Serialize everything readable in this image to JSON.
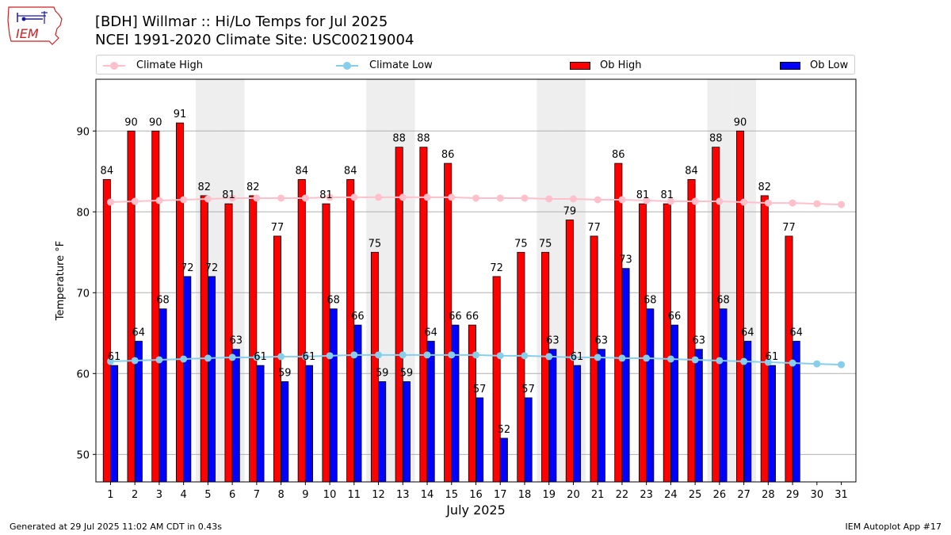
{
  "header": {
    "logo_text": "IEM",
    "title": "[BDH] Willmar :: Hi/Lo Temps for Jul 2025",
    "subtitle": "NCEI 1991-2020 Climate Site: USC00219004"
  },
  "legend": {
    "climate_high": "Climate High",
    "climate_low": "Climate Low",
    "ob_high": "Ob High",
    "ob_low": "Ob Low"
  },
  "colors": {
    "ob_high": "#ff0000",
    "ob_low": "#0000ff",
    "climate_high": "#ffc0cb",
    "climate_low": "#87ceeb",
    "weekend_shade": "#eeeeee"
  },
  "footer": {
    "left": "Generated at 29 Jul 2025 11:02 AM CDT in 0.43s",
    "right": "IEM Autoplot App #17"
  },
  "chart_data": {
    "type": "bar",
    "xlabel": "July 2025",
    "ylabel": "Temperature °F",
    "ylim": [
      46.6,
      96.4
    ],
    "yticks": [
      50,
      60,
      70,
      80,
      90
    ],
    "grid": "horizontal",
    "legend_position": "top",
    "categories": [
      "1",
      "2",
      "3",
      "4",
      "5",
      "6",
      "7",
      "8",
      "9",
      "10",
      "11",
      "12",
      "13",
      "14",
      "15",
      "16",
      "17",
      "18",
      "19",
      "20",
      "21",
      "22",
      "23",
      "24",
      "25",
      "26",
      "27",
      "28",
      "29",
      "30",
      "31"
    ],
    "shaded_days": [
      5,
      6,
      12,
      13,
      19,
      20,
      26,
      27
    ],
    "series": [
      {
        "name": "Ob High",
        "kind": "bar",
        "values": [
          84,
          90,
          90,
          91,
          82,
          81,
          82,
          77,
          84,
          81,
          84,
          75,
          88,
          88,
          86,
          66,
          72,
          75,
          75,
          79,
          77,
          86,
          81,
          81,
          84,
          88,
          90,
          82,
          77,
          null,
          null
        ],
        "labels": [
          84,
          90,
          90,
          91,
          82,
          81,
          82,
          77,
          84,
          81,
          84,
          75,
          88,
          88,
          86,
          66,
          72,
          75,
          75,
          79,
          77,
          86,
          81,
          81,
          84,
          88,
          90,
          82,
          77,
          null,
          null
        ]
      },
      {
        "name": "Ob Low",
        "kind": "bar",
        "values": [
          61,
          64,
          68,
          72,
          72,
          63,
          61,
          59,
          61,
          68,
          66,
          59,
          59,
          64,
          66,
          57,
          52,
          57,
          63,
          61,
          63,
          73,
          68,
          66,
          63,
          68,
          64,
          61,
          64,
          null,
          null
        ],
        "labels": [
          61,
          64,
          68,
          72,
          72,
          63,
          61,
          59,
          61,
          68,
          66,
          59,
          59,
          64,
          66,
          57,
          52,
          57,
          63,
          61,
          63,
          73,
          68,
          66,
          63,
          68,
          64,
          61,
          64,
          null,
          null
        ]
      },
      {
        "name": "Climate High",
        "kind": "line",
        "values": [
          81.2,
          81.3,
          81.4,
          81.5,
          81.6,
          81.7,
          81.7,
          81.7,
          81.7,
          81.8,
          81.8,
          81.8,
          81.8,
          81.8,
          81.8,
          81.7,
          81.7,
          81.7,
          81.6,
          81.6,
          81.5,
          81.5,
          81.4,
          81.3,
          81.3,
          81.3,
          81.2,
          81.1,
          81.1,
          81.0,
          80.9
        ]
      },
      {
        "name": "Climate Low",
        "kind": "line",
        "values": [
          61.5,
          61.6,
          61.7,
          61.8,
          61.9,
          62.0,
          62.0,
          62.1,
          62.1,
          62.2,
          62.3,
          62.3,
          62.3,
          62.3,
          62.3,
          62.3,
          62.2,
          62.2,
          62.1,
          62.0,
          62.0,
          61.9,
          61.9,
          61.8,
          61.7,
          61.6,
          61.5,
          61.4,
          61.3,
          61.2,
          61.1
        ]
      }
    ]
  }
}
